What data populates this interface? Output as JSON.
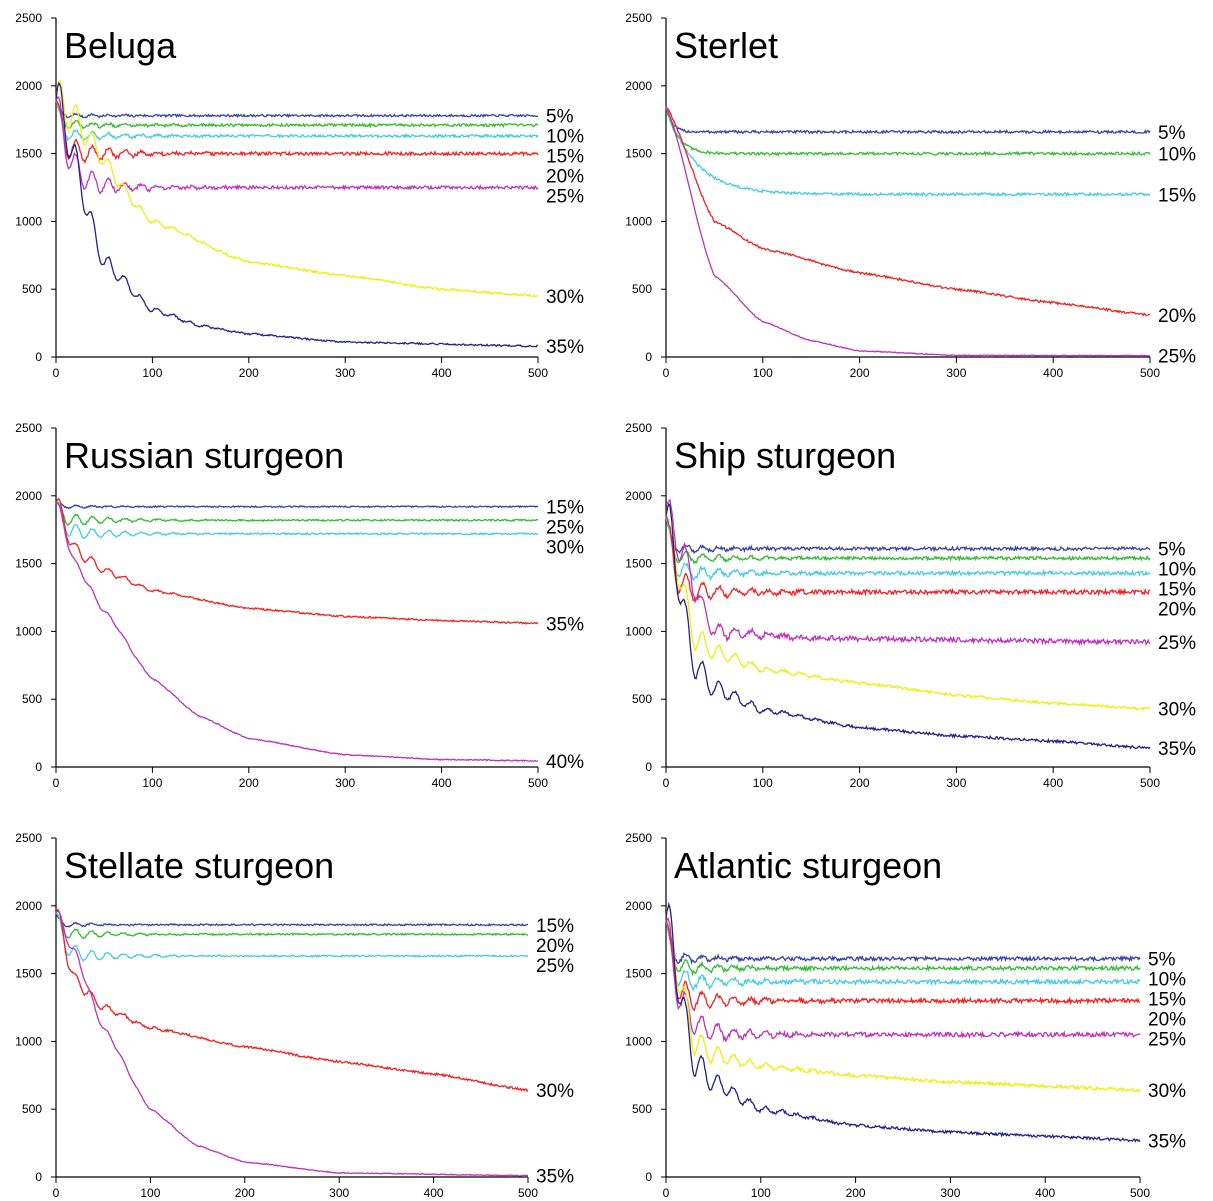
{
  "chart_data": [
    {
      "type": "line",
      "title": "Beluga",
      "xlim": [
        0,
        500
      ],
      "ylim": [
        0,
        2500
      ],
      "xticks": [
        0,
        100,
        200,
        300,
        400,
        500
      ],
      "yticks": [
        0,
        500,
        1000,
        1500,
        2000,
        2500
      ],
      "grid": false,
      "series": [
        {
          "name": "5%",
          "color": "#3344aa",
          "start": 1900,
          "end": 1780,
          "tau": 3,
          "mid": [],
          "noise": 8,
          "osc": 20
        },
        {
          "name": "10%",
          "color": "#33bb33",
          "start": 1900,
          "end": 1710,
          "tau": 4,
          "mid": [],
          "noise": 10,
          "osc": 40
        },
        {
          "name": "15%",
          "color": "#44ccdd",
          "start": 1900,
          "end": 1630,
          "tau": 5,
          "mid": [],
          "noise": 10,
          "osc": 60
        },
        {
          "name": "20%",
          "color": "#ee2222",
          "start": 1900,
          "end": 1500,
          "tau": 7,
          "mid": [],
          "noise": 12,
          "osc": 120
        },
        {
          "name": "25%",
          "color": "#bb33bb",
          "start": 1900,
          "end": 1250,
          "tau": 14,
          "mid": [],
          "noise": 12,
          "osc": 160
        },
        {
          "name": "30%",
          "color": "#eeee11",
          "start": 1900,
          "end": 450,
          "tau": 200,
          "mid": [
            [
              100,
              1000
            ],
            [
              200,
              700
            ],
            [
              300,
              600
            ],
            [
              400,
              500
            ]
          ],
          "noise": 8,
          "osc": 180
        },
        {
          "name": "35%",
          "color": "#222288",
          "start": 1900,
          "end": 80,
          "tau": 60,
          "mid": [
            [
              50,
              700
            ],
            [
              100,
              350
            ],
            [
              150,
              230
            ],
            [
              200,
              170
            ],
            [
              300,
              110
            ]
          ],
          "noise": 6,
          "osc": 200
        }
      ]
    },
    {
      "type": "line",
      "title": "Sterlet",
      "xlim": [
        0,
        500
      ],
      "ylim": [
        0,
        2500
      ],
      "xticks": [
        0,
        100,
        200,
        300,
        400,
        500
      ],
      "yticks": [
        0,
        500,
        1000,
        1500,
        2000,
        2500
      ],
      "grid": false,
      "series": [
        {
          "name": "5%",
          "color": "#3344aa",
          "start": 1850,
          "end": 1660,
          "tau": 6,
          "mid": [],
          "noise": 10,
          "osc": 0
        },
        {
          "name": "10%",
          "color": "#33bb33",
          "start": 1850,
          "end": 1500,
          "tau": 12,
          "mid": [],
          "noise": 10,
          "osc": 0
        },
        {
          "name": "15%",
          "color": "#44ccdd",
          "start": 1850,
          "end": 1200,
          "tau": 30,
          "mid": [],
          "noise": 10,
          "osc": 0
        },
        {
          "name": "20%",
          "color": "#ee2222",
          "start": 1850,
          "end": 310,
          "tau": 200,
          "mid": [
            [
              50,
              1000
            ],
            [
              100,
              800
            ],
            [
              200,
              620
            ],
            [
              300,
              500
            ],
            [
              400,
              400
            ]
          ],
          "noise": 8,
          "osc": 0
        },
        {
          "name": "25%",
          "color": "#bb33bb",
          "start": 1850,
          "end": 10,
          "tau": 60,
          "mid": [
            [
              50,
              600
            ],
            [
              100,
              260
            ],
            [
              150,
              120
            ],
            [
              200,
              45
            ],
            [
              300,
              12
            ]
          ],
          "noise": 3,
          "osc": 0
        }
      ]
    },
    {
      "type": "line",
      "title": "Russian sturgeon",
      "xlim": [
        0,
        500
      ],
      "ylim": [
        0,
        2500
      ],
      "xticks": [
        0,
        100,
        200,
        300,
        400,
        500
      ],
      "yticks": [
        0,
        500,
        1000,
        1500,
        2000,
        2500
      ],
      "grid": false,
      "series": [
        {
          "name": "15%",
          "color": "#3344aa",
          "start": 1950,
          "end": 1920,
          "tau": 3,
          "mid": [],
          "noise": 5,
          "osc": 15
        },
        {
          "name": "25%",
          "color": "#33bb33",
          "start": 1950,
          "end": 1820,
          "tau": 5,
          "mid": [],
          "noise": 6,
          "osc": 60
        },
        {
          "name": "30%",
          "color": "#44ccdd",
          "start": 1950,
          "end": 1720,
          "tau": 8,
          "mid": [],
          "noise": 6,
          "osc": 80
        },
        {
          "name": "35%",
          "color": "#ee2222",
          "start": 1950,
          "end": 1060,
          "tau": 200,
          "mid": [
            [
              20,
              1600
            ],
            [
              50,
              1450
            ],
            [
              100,
              1300
            ],
            [
              200,
              1170
            ],
            [
              300,
              1110
            ],
            [
              400,
              1080
            ]
          ],
          "noise": 6,
          "osc": 80
        },
        {
          "name": "40%",
          "color": "#bb33bb",
          "start": 1950,
          "end": 45,
          "tau": 60,
          "mid": [
            [
              20,
              1500
            ],
            [
              50,
              1150
            ],
            [
              100,
              650
            ],
            [
              150,
              370
            ],
            [
              200,
              210
            ],
            [
              300,
              90
            ],
            [
              400,
              55
            ]
          ],
          "noise": 4,
          "osc": 40
        }
      ]
    },
    {
      "type": "line",
      "title": "Ship sturgeon",
      "xlim": [
        0,
        500
      ],
      "ylim": [
        0,
        2500
      ],
      "xticks": [
        0,
        100,
        200,
        300,
        400,
        500
      ],
      "yticks": [
        0,
        500,
        1000,
        1500,
        2000,
        2500
      ],
      "grid": false,
      "series": [
        {
          "name": "5%",
          "color": "#3344aa",
          "start": 1850,
          "end": 1610,
          "tau": 4,
          "mid": [],
          "noise": 12,
          "osc": 40
        },
        {
          "name": "10%",
          "color": "#33bb33",
          "start": 1850,
          "end": 1540,
          "tau": 5,
          "mid": [],
          "noise": 12,
          "osc": 60
        },
        {
          "name": "15%",
          "color": "#44ccdd",
          "start": 1850,
          "end": 1430,
          "tau": 6,
          "mid": [],
          "noise": 14,
          "osc": 90
        },
        {
          "name": "20%",
          "color": "#ee2222",
          "start": 1850,
          "end": 1290,
          "tau": 8,
          "mid": [],
          "noise": 16,
          "osc": 140
        },
        {
          "name": "25%",
          "color": "#bb33bb",
          "start": 1850,
          "end": 920,
          "tau": 14,
          "mid": [
            [
              50,
              1000
            ],
            [
              150,
              950
            ]
          ],
          "noise": 18,
          "osc": 180
        },
        {
          "name": "30%",
          "color": "#eeee11",
          "start": 1850,
          "end": 430,
          "tau": 200,
          "mid": [
            [
              30,
              950
            ],
            [
              50,
              850
            ],
            [
              100,
              720
            ],
            [
              200,
              620
            ],
            [
              300,
              530
            ],
            [
              400,
              470
            ]
          ],
          "noise": 10,
          "osc": 180
        },
        {
          "name": "35%",
          "color": "#222288",
          "start": 1850,
          "end": 140,
          "tau": 200,
          "mid": [
            [
              30,
              750
            ],
            [
              50,
              580
            ],
            [
              100,
              420
            ],
            [
              200,
              290
            ],
            [
              300,
              230
            ],
            [
              400,
              190
            ]
          ],
          "noise": 10,
          "osc": 200
        }
      ]
    },
    {
      "type": "line",
      "title": "Stellate sturgeon",
      "xlim": [
        0,
        500
      ],
      "ylim": [
        0,
        2500
      ],
      "xticks": [
        0,
        100,
        200,
        300,
        400,
        500
      ],
      "yticks": [
        0,
        500,
        1000,
        1500,
        2000,
        2500
      ],
      "grid": false,
      "series": [
        {
          "name": "15%",
          "color": "#3344aa",
          "start": 1950,
          "end": 1860,
          "tau": 3,
          "mid": [],
          "noise": 6,
          "osc": 20
        },
        {
          "name": "20%",
          "color": "#33bb33",
          "start": 1950,
          "end": 1790,
          "tau": 5,
          "mid": [],
          "noise": 6,
          "osc": 50
        },
        {
          "name": "25%",
          "color": "#44ccdd",
          "start": 1950,
          "end": 1630,
          "tau": 8,
          "mid": [],
          "noise": 6,
          "osc": 80
        },
        {
          "name": "30%",
          "color": "#ee2222",
          "start": 1950,
          "end": 640,
          "tau": 200,
          "mid": [
            [
              20,
              1450
            ],
            [
              50,
              1250
            ],
            [
              100,
              1100
            ],
            [
              200,
              960
            ],
            [
              300,
              850
            ],
            [
              400,
              760
            ]
          ],
          "noise": 8,
          "osc": 80
        },
        {
          "name": "35%",
          "color": "#bb33bb",
          "start": 1950,
          "end": 10,
          "tau": 60,
          "mid": [
            [
              20,
              1650
            ],
            [
              50,
              1100
            ],
            [
              100,
              500
            ],
            [
              150,
              230
            ],
            [
              200,
              110
            ],
            [
              300,
              30
            ]
          ],
          "noise": 3,
          "osc": 50
        }
      ]
    },
    {
      "type": "line",
      "title": "Atlantic sturgeon",
      "xlim": [
        0,
        500
      ],
      "ylim": [
        0,
        2500
      ],
      "xticks": [
        0,
        100,
        200,
        300,
        400,
        500
      ],
      "yticks": [
        0,
        500,
        1000,
        1500,
        2000,
        2500
      ],
      "grid": false,
      "series": [
        {
          "name": "5%",
          "color": "#3344aa",
          "start": 1900,
          "end": 1610,
          "tau": 4,
          "mid": [],
          "noise": 14,
          "osc": 50
        },
        {
          "name": "10%",
          "color": "#33bb33",
          "start": 1900,
          "end": 1540,
          "tau": 5,
          "mid": [],
          "noise": 14,
          "osc": 70
        },
        {
          "name": "15%",
          "color": "#44ccdd",
          "start": 1900,
          "end": 1440,
          "tau": 6,
          "mid": [],
          "noise": 16,
          "osc": 100
        },
        {
          "name": "20%",
          "color": "#ee2222",
          "start": 1900,
          "end": 1300,
          "tau": 8,
          "mid": [],
          "noise": 16,
          "osc": 140
        },
        {
          "name": "25%",
          "color": "#bb33bb",
          "start": 1900,
          "end": 1050,
          "tau": 14,
          "mid": [],
          "noise": 16,
          "osc": 180
        },
        {
          "name": "30%",
          "color": "#eeee11",
          "start": 1900,
          "end": 640,
          "tau": 200,
          "mid": [
            [
              30,
              1000
            ],
            [
              50,
              900
            ],
            [
              100,
              820
            ],
            [
              200,
              750
            ],
            [
              300,
              700
            ],
            [
              400,
              670
            ]
          ],
          "noise": 12,
          "osc": 200
        },
        {
          "name": "35%",
          "color": "#222288",
          "start": 1900,
          "end": 270,
          "tau": 200,
          "mid": [
            [
              30,
              850
            ],
            [
              50,
              700
            ],
            [
              100,
              500
            ],
            [
              200,
              380
            ],
            [
              300,
              330
            ],
            [
              400,
              300
            ]
          ],
          "noise": 10,
          "osc": 220
        }
      ]
    }
  ]
}
